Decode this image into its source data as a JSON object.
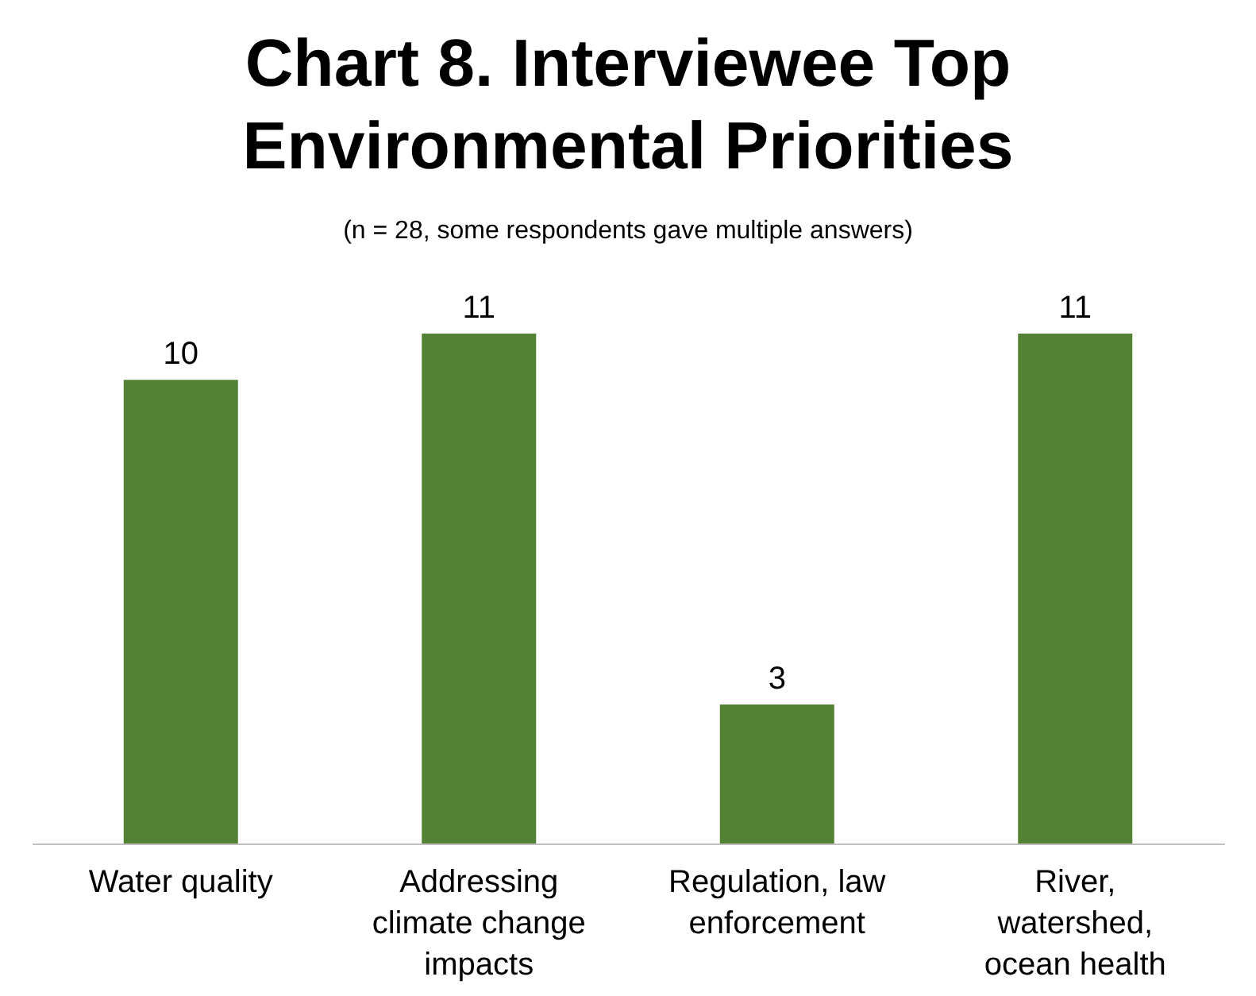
{
  "chart_data": {
    "type": "bar",
    "title": "Chart 8. Interviewee Top Environmental Priorities",
    "subtitle": "(n = 28, some respondents gave multiple answers)",
    "categories": [
      "Water quality",
      "Addressing climate change impacts",
      "Regulation, law enforcement",
      "River, watershed, ocean health"
    ],
    "values": [
      10,
      11,
      3,
      11
    ],
    "color": "#548235",
    "data_labels": true
  }
}
